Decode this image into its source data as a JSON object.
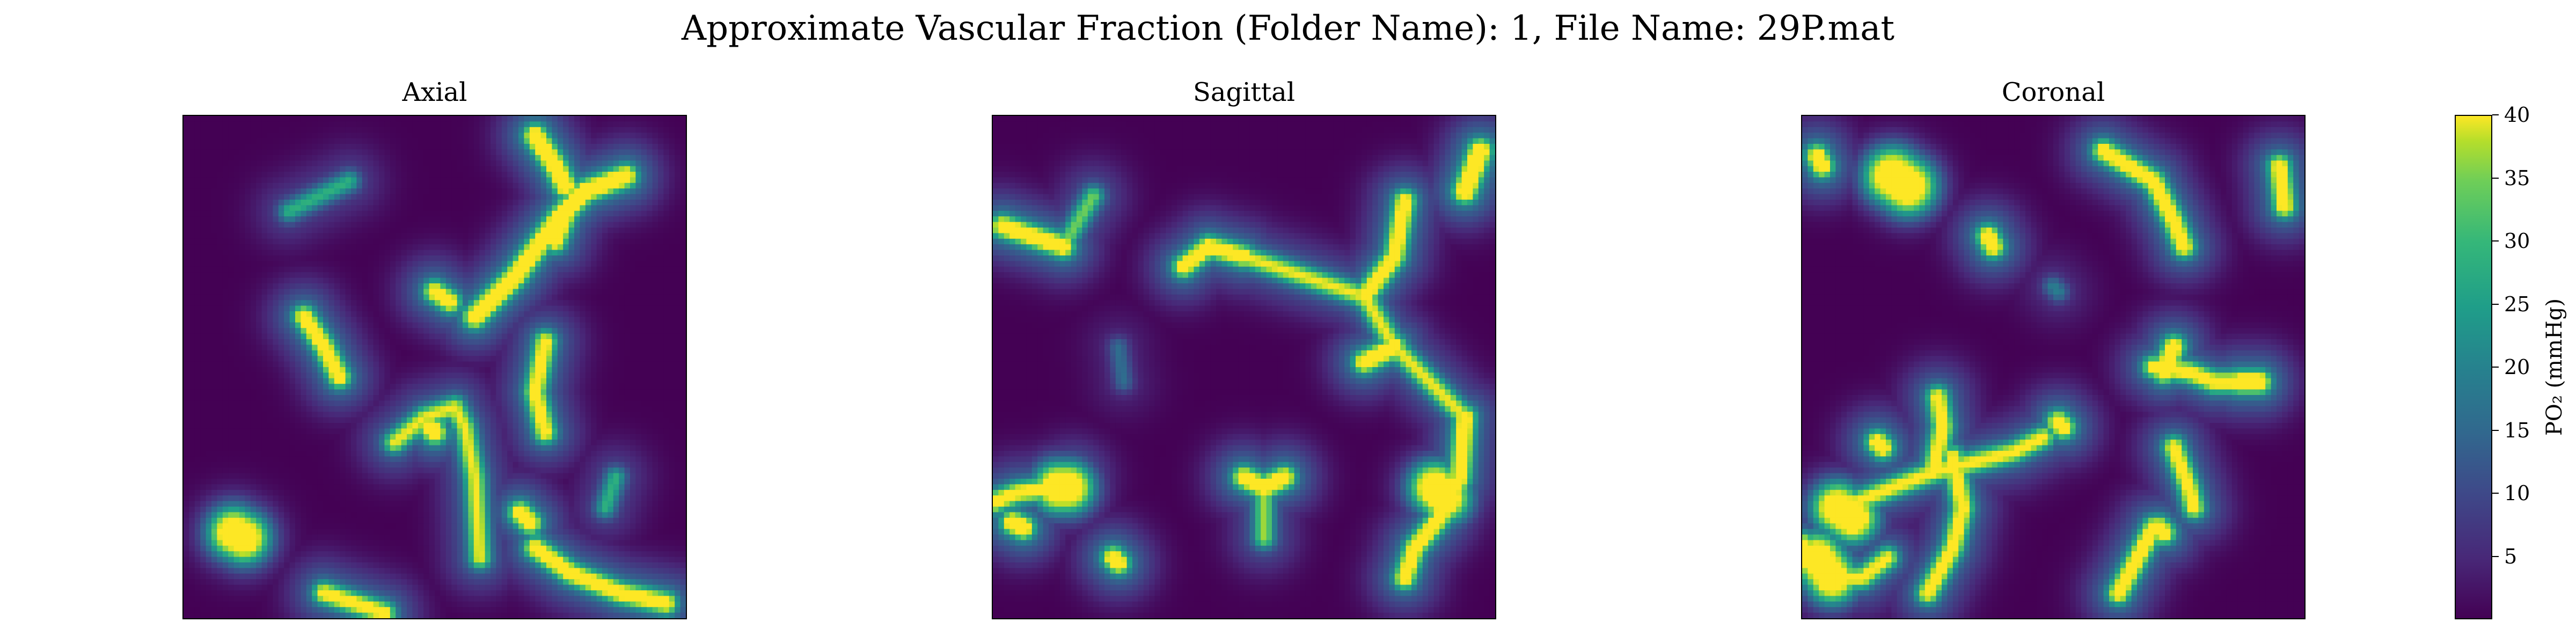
{
  "suptitle": "Approximate Vascular Fraction (Folder Name): 1, File Name: 29P.mat",
  "chart_data": {
    "type": "heatmap",
    "panels": [
      {
        "title": "Axial",
        "vessels": [
          {
            "path": [
              [
                0.21,
                0.19
              ],
              [
                0.33,
                0.13
              ]
            ],
            "peak": 0.45
          },
          {
            "path": [
              [
                0.7,
                0.04
              ],
              [
                0.74,
                0.1
              ],
              [
                0.76,
                0.14
              ]
            ],
            "peak": 0.95
          },
          {
            "path": [
              [
                0.58,
                0.4
              ],
              [
                0.66,
                0.32
              ],
              [
                0.75,
                0.2
              ],
              [
                0.8,
                0.15
              ],
              [
                0.88,
                0.12
              ]
            ],
            "peak": 0.95
          },
          {
            "path": [
              [
                0.76,
                0.2
              ],
              [
                0.74,
                0.25
              ]
            ],
            "peak": 0.85
          },
          {
            "path": [
              [
                0.53,
                0.37
              ],
              [
                0.5,
                0.35
              ]
            ],
            "peak": 0.85
          },
          {
            "path": [
              [
                0.24,
                0.4
              ],
              [
                0.28,
                0.46
              ],
              [
                0.31,
                0.52
              ]
            ],
            "peak": 0.85
          },
          {
            "path": [
              [
                0.72,
                0.45
              ],
              [
                0.7,
                0.55
              ],
              [
                0.72,
                0.63
              ]
            ],
            "peak": 0.8
          },
          {
            "path": [
              [
                0.42,
                0.65
              ],
              [
                0.48,
                0.6
              ],
              [
                0.54,
                0.58
              ],
              [
                0.56,
                0.62
              ],
              [
                0.58,
                0.72
              ],
              [
                0.59,
                0.88
              ]
            ],
            "peak": 0.7
          },
          {
            "path": [
              [
                0.49,
                0.62
              ],
              [
                0.5,
                0.63
              ]
            ],
            "peak": 0.95
          },
          {
            "path": [
              [
                0.1,
                0.83
              ],
              [
                0.12,
                0.84
              ]
            ],
            "peak": 1.0,
            "width": 0.03
          },
          {
            "path": [
              [
                0.67,
                0.79
              ],
              [
                0.69,
                0.81
              ]
            ],
            "peak": 0.9
          },
          {
            "path": [
              [
                0.7,
                0.86
              ],
              [
                0.77,
                0.91
              ],
              [
                0.87,
                0.95
              ],
              [
                0.96,
                0.97
              ]
            ],
            "peak": 0.85
          },
          {
            "path": [
              [
                0.84,
                0.78
              ],
              [
                0.86,
                0.72
              ]
            ],
            "peak": 0.45
          },
          {
            "path": [
              [
                0.28,
                0.95
              ],
              [
                0.4,
                0.99
              ]
            ],
            "peak": 0.8
          }
        ]
      },
      {
        "title": "Sagittal",
        "vessels": [
          {
            "path": [
              [
                0.97,
                0.07
              ],
              [
                0.94,
                0.15
              ]
            ],
            "peak": 1.0
          },
          {
            "path": [
              [
                0.02,
                0.22
              ],
              [
                0.08,
                0.24
              ],
              [
                0.14,
                0.26
              ]
            ],
            "peak": 0.9
          },
          {
            "path": [
              [
                0.14,
                0.26
              ],
              [
                0.2,
                0.16
              ]
            ],
            "peak": 0.55
          },
          {
            "path": [
              [
                0.38,
                0.3
              ],
              [
                0.43,
                0.26
              ],
              [
                0.5,
                0.28
              ]
            ],
            "peak": 0.85
          },
          {
            "path": [
              [
                0.5,
                0.28
              ],
              [
                0.62,
                0.32
              ],
              [
                0.74,
                0.36
              ],
              [
                0.8,
                0.46
              ],
              [
                0.88,
                0.54
              ],
              [
                0.94,
                0.6
              ]
            ],
            "peak": 0.7
          },
          {
            "path": [
              [
                0.74,
                0.36
              ],
              [
                0.8,
                0.28
              ],
              [
                0.82,
                0.17
              ]
            ],
            "peak": 0.85
          },
          {
            "path": [
              [
                0.8,
                0.46
              ],
              [
                0.74,
                0.49
              ]
            ],
            "peak": 0.9
          },
          {
            "path": [
              [
                0.94,
                0.6
              ],
              [
                0.93,
                0.72
              ],
              [
                0.89,
                0.8
              ],
              [
                0.84,
                0.86
              ],
              [
                0.82,
                0.92
              ]
            ],
            "peak": 0.85
          },
          {
            "path": [
              [
                0.88,
                0.74
              ],
              [
                0.9,
                0.76
              ]
            ],
            "peak": 1.0,
            "width": 0.03
          },
          {
            "path": [
              [
                0.25,
                0.46
              ],
              [
                0.26,
                0.53
              ]
            ],
            "peak": 0.25
          },
          {
            "path": [
              [
                0.0,
                0.77
              ],
              [
                0.05,
                0.75
              ],
              [
                0.13,
                0.74
              ],
              [
                0.16,
                0.72
              ]
            ],
            "peak": 0.8
          },
          {
            "path": [
              [
                0.13,
                0.74
              ],
              [
                0.15,
                0.74
              ]
            ],
            "peak": 1.0,
            "width": 0.03
          },
          {
            "path": [
              [
                0.04,
                0.81
              ],
              [
                0.06,
                0.82
              ]
            ],
            "peak": 0.95
          },
          {
            "path": [
              [
                0.5,
                0.72
              ],
              [
                0.54,
                0.74
              ],
              [
                0.58,
                0.72
              ]
            ],
            "peak": 0.9
          },
          {
            "path": [
              [
                0.54,
                0.74
              ],
              [
                0.54,
                0.84
              ]
            ],
            "peak": 0.6
          },
          {
            "path": [
              [
                0.24,
                0.88
              ],
              [
                0.25,
                0.89
              ]
            ],
            "peak": 0.9
          }
        ]
      },
      {
        "title": "Coronal",
        "vessels": [
          {
            "path": [
              [
                0.03,
                0.08
              ],
              [
                0.04,
                0.1
              ]
            ],
            "peak": 0.9
          },
          {
            "path": [
              [
                0.18,
                0.12
              ],
              [
                0.21,
                0.14
              ]
            ],
            "peak": 1.0,
            "width": 0.035
          },
          {
            "path": [
              [
                0.6,
                0.07
              ],
              [
                0.7,
                0.13
              ],
              [
                0.74,
                0.21
              ],
              [
                0.76,
                0.26
              ]
            ],
            "peak": 0.85
          },
          {
            "path": [
              [
                0.95,
                0.1
              ],
              [
                0.96,
                0.18
              ]
            ],
            "peak": 0.85
          },
          {
            "path": [
              [
                0.37,
                0.24
              ],
              [
                0.38,
                0.26
              ]
            ],
            "peak": 0.9
          },
          {
            "path": [
              [
                0.5,
                0.34
              ],
              [
                0.51,
                0.35
              ]
            ],
            "peak": 0.3
          },
          {
            "path": [
              [
                0.7,
                0.5
              ],
              [
                0.77,
                0.51
              ],
              [
                0.82,
                0.53
              ],
              [
                0.88,
                0.53
              ]
            ],
            "peak": 0.8
          },
          {
            "path": [
              [
                0.74,
                0.46
              ],
              [
                0.72,
                0.51
              ]
            ],
            "peak": 0.9
          },
          {
            "path": [
              [
                0.87,
                0.53
              ],
              [
                0.91,
                0.53
              ]
            ],
            "peak": 0.95
          },
          {
            "path": [
              [
                0.0,
                0.85
              ],
              [
                0.06,
                0.92
              ],
              [
                0.12,
                0.92
              ],
              [
                0.17,
                0.88
              ]
            ],
            "peak": 0.75
          },
          {
            "path": [
              [
                0.08,
                0.78
              ],
              [
                0.18,
                0.74
              ],
              [
                0.26,
                0.71
              ],
              [
                0.34,
                0.69
              ],
              [
                0.42,
                0.67
              ],
              [
                0.48,
                0.64
              ]
            ],
            "peak": 0.75
          },
          {
            "path": [
              [
                0.26,
                0.71
              ],
              [
                0.28,
                0.62
              ],
              [
                0.27,
                0.56
              ]
            ],
            "peak": 0.8
          },
          {
            "path": [
              [
                0.3,
                0.68
              ],
              [
                0.32,
                0.78
              ],
              [
                0.3,
                0.86
              ],
              [
                0.25,
                0.95
              ]
            ],
            "peak": 0.8
          },
          {
            "path": [
              [
                0.07,
                0.78
              ],
              [
                0.1,
                0.8
              ]
            ],
            "peak": 1.0,
            "width": 0.03
          },
          {
            "path": [
              [
                0.03,
                0.88
              ],
              [
                0.06,
                0.92
              ]
            ],
            "peak": 1.0,
            "width": 0.03
          },
          {
            "path": [
              [
                0.15,
                0.65
              ],
              [
                0.16,
                0.66
              ]
            ],
            "peak": 0.9
          },
          {
            "path": [
              [
                0.51,
                0.61
              ],
              [
                0.52,
                0.62
              ]
            ],
            "peak": 0.9
          },
          {
            "path": [
              [
                0.74,
                0.66
              ],
              [
                0.77,
                0.74
              ],
              [
                0.78,
                0.78
              ]
            ],
            "peak": 0.8
          },
          {
            "path": [
              [
                0.7,
                0.82
              ],
              [
                0.63,
                0.95
              ]
            ],
            "peak": 0.85
          },
          {
            "path": [
              [
                0.71,
                0.82
              ],
              [
                0.72,
                0.83
              ]
            ],
            "peak": 0.9
          }
        ]
      }
    ],
    "colorbar": {
      "label": "PO$_2$ (mmHg)",
      "label_display": "PO₂ (mmHg)",
      "ticks": [
        5,
        10,
        15,
        20,
        25,
        30,
        35,
        40
      ],
      "tick_labels": [
        "5",
        "10",
        "15",
        "20",
        "25",
        "30",
        "35",
        "40"
      ],
      "vmin": 0,
      "vmax": 40,
      "colormap": "viridis"
    }
  }
}
